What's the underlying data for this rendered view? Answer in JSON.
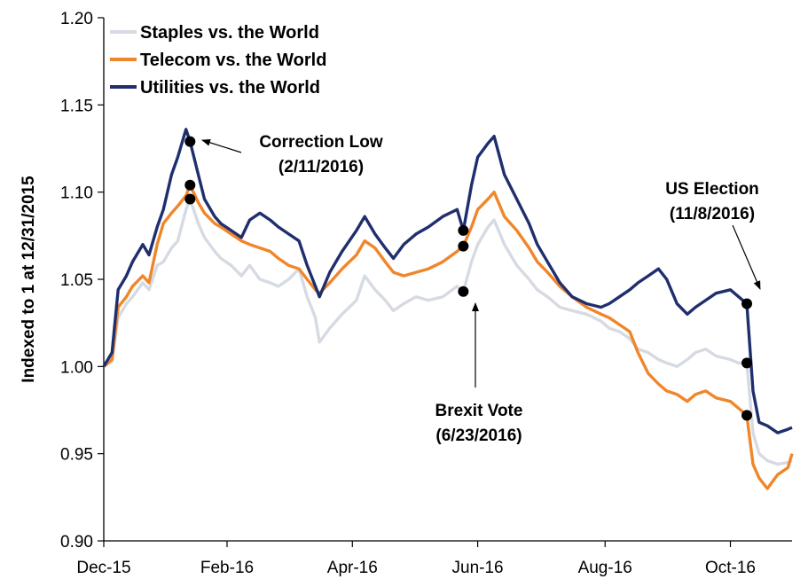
{
  "chart_data": {
    "type": "line",
    "ylabel": "Indexed to 1 at 12/31/2015",
    "xlabel": "",
    "ylim": [
      0.9,
      1.2
    ],
    "yticks": [
      "0.90",
      "0.95",
      "1.00",
      "1.05",
      "1.10",
      "1.15",
      "1.20"
    ],
    "xlim": [
      "2015-12-31",
      "2016-11-30"
    ],
    "xticks": [
      {
        "label": "Dec-15",
        "date": "2015-12-31"
      },
      {
        "label": "Feb-16",
        "date": "2016-02-29"
      },
      {
        "label": "Apr-16",
        "date": "2016-04-30"
      },
      {
        "label": "Jun-16",
        "date": "2016-06-30"
      },
      {
        "label": "Aug-16",
        "date": "2016-08-31"
      },
      {
        "label": "Oct-16",
        "date": "2016-10-31"
      }
    ],
    "grid": false,
    "legend_position": "top-left",
    "series": [
      {
        "name": "Staples vs. the World",
        "color": "#d6dae3",
        "points": [
          [
            "2015-12-31",
            1.0
          ],
          [
            "2016-01-04",
            1.003
          ],
          [
            "2016-01-07",
            1.028
          ],
          [
            "2016-01-11",
            1.036
          ],
          [
            "2016-01-14",
            1.04
          ],
          [
            "2016-01-19",
            1.048
          ],
          [
            "2016-01-22",
            1.044
          ],
          [
            "2016-01-26",
            1.058
          ],
          [
            "2016-01-29",
            1.06
          ],
          [
            "2016-02-02",
            1.068
          ],
          [
            "2016-02-05",
            1.072
          ],
          [
            "2016-02-09",
            1.09
          ],
          [
            "2016-02-11",
            1.096
          ],
          [
            "2016-02-15",
            1.082
          ],
          [
            "2016-02-18",
            1.074
          ],
          [
            "2016-02-23",
            1.066
          ],
          [
            "2016-02-26",
            1.062
          ],
          [
            "2016-03-02",
            1.058
          ],
          [
            "2016-03-07",
            1.052
          ],
          [
            "2016-03-11",
            1.058
          ],
          [
            "2016-03-16",
            1.05
          ],
          [
            "2016-03-21",
            1.048
          ],
          [
            "2016-03-25",
            1.046
          ],
          [
            "2016-03-30",
            1.05
          ],
          [
            "2016-04-04",
            1.056
          ],
          [
            "2016-04-08",
            1.04
          ],
          [
            "2016-04-12",
            1.028
          ],
          [
            "2016-04-14",
            1.014
          ],
          [
            "2016-04-19",
            1.022
          ],
          [
            "2016-04-25",
            1.03
          ],
          [
            "2016-05-02",
            1.038
          ],
          [
            "2016-05-06",
            1.052
          ],
          [
            "2016-05-11",
            1.044
          ],
          [
            "2016-05-16",
            1.038
          ],
          [
            "2016-05-20",
            1.032
          ],
          [
            "2016-05-25",
            1.036
          ],
          [
            "2016-05-31",
            1.04
          ],
          [
            "2016-06-06",
            1.038
          ],
          [
            "2016-06-13",
            1.04
          ],
          [
            "2016-06-20",
            1.046
          ],
          [
            "2016-06-23",
            1.043
          ],
          [
            "2016-06-27",
            1.06
          ],
          [
            "2016-06-30",
            1.07
          ],
          [
            "2016-07-05",
            1.08
          ],
          [
            "2016-07-08",
            1.084
          ],
          [
            "2016-07-13",
            1.07
          ],
          [
            "2016-07-19",
            1.058
          ],
          [
            "2016-07-25",
            1.05
          ],
          [
            "2016-07-29",
            1.044
          ],
          [
            "2016-08-03",
            1.04
          ],
          [
            "2016-08-09",
            1.034
          ],
          [
            "2016-08-15",
            1.032
          ],
          [
            "2016-08-22",
            1.03
          ],
          [
            "2016-08-29",
            1.026
          ],
          [
            "2016-09-02",
            1.022
          ],
          [
            "2016-09-07",
            1.02
          ],
          [
            "2016-09-12",
            1.016
          ],
          [
            "2016-09-16",
            1.01
          ],
          [
            "2016-09-21",
            1.008
          ],
          [
            "2016-09-26",
            1.004
          ],
          [
            "2016-09-30",
            1.002
          ],
          [
            "2016-10-05",
            1.0
          ],
          [
            "2016-10-10",
            1.004
          ],
          [
            "2016-10-14",
            1.008
          ],
          [
            "2016-10-19",
            1.01
          ],
          [
            "2016-10-24",
            1.006
          ],
          [
            "2016-10-31",
            1.004
          ],
          [
            "2016-11-04",
            1.002
          ],
          [
            "2016-11-08",
            1.002
          ],
          [
            "2016-11-11",
            0.962
          ],
          [
            "2016-11-14",
            0.95
          ],
          [
            "2016-11-18",
            0.946
          ],
          [
            "2016-11-23",
            0.944
          ],
          [
            "2016-11-28",
            0.945
          ],
          [
            "2016-11-30",
            0.946
          ]
        ]
      },
      {
        "name": "Telecom vs. the World",
        "color": "#f0862a",
        "points": [
          [
            "2015-12-31",
            1.0
          ],
          [
            "2016-01-04",
            1.004
          ],
          [
            "2016-01-07",
            1.034
          ],
          [
            "2016-01-11",
            1.04
          ],
          [
            "2016-01-14",
            1.046
          ],
          [
            "2016-01-19",
            1.052
          ],
          [
            "2016-01-22",
            1.048
          ],
          [
            "2016-01-26",
            1.07
          ],
          [
            "2016-01-29",
            1.082
          ],
          [
            "2016-02-02",
            1.088
          ],
          [
            "2016-02-05",
            1.092
          ],
          [
            "2016-02-09",
            1.098
          ],
          [
            "2016-02-11",
            1.104
          ],
          [
            "2016-02-15",
            1.094
          ],
          [
            "2016-02-18",
            1.088
          ],
          [
            "2016-02-23",
            1.082
          ],
          [
            "2016-02-26",
            1.08
          ],
          [
            "2016-03-02",
            1.076
          ],
          [
            "2016-03-07",
            1.072
          ],
          [
            "2016-03-11",
            1.07
          ],
          [
            "2016-03-16",
            1.068
          ],
          [
            "2016-03-21",
            1.066
          ],
          [
            "2016-03-25",
            1.062
          ],
          [
            "2016-03-30",
            1.058
          ],
          [
            "2016-04-04",
            1.056
          ],
          [
            "2016-04-08",
            1.05
          ],
          [
            "2016-04-12",
            1.044
          ],
          [
            "2016-04-14",
            1.042
          ],
          [
            "2016-04-19",
            1.048
          ],
          [
            "2016-04-25",
            1.056
          ],
          [
            "2016-05-02",
            1.064
          ],
          [
            "2016-05-06",
            1.072
          ],
          [
            "2016-05-11",
            1.068
          ],
          [
            "2016-05-16",
            1.06
          ],
          [
            "2016-05-20",
            1.054
          ],
          [
            "2016-05-25",
            1.052
          ],
          [
            "2016-05-31",
            1.054
          ],
          [
            "2016-06-06",
            1.056
          ],
          [
            "2016-06-13",
            1.06
          ],
          [
            "2016-06-20",
            1.066
          ],
          [
            "2016-06-23",
            1.069
          ],
          [
            "2016-06-27",
            1.08
          ],
          [
            "2016-06-30",
            1.09
          ],
          [
            "2016-07-05",
            1.096
          ],
          [
            "2016-07-08",
            1.1
          ],
          [
            "2016-07-13",
            1.086
          ],
          [
            "2016-07-19",
            1.078
          ],
          [
            "2016-07-25",
            1.068
          ],
          [
            "2016-07-29",
            1.06
          ],
          [
            "2016-08-03",
            1.054
          ],
          [
            "2016-08-09",
            1.046
          ],
          [
            "2016-08-15",
            1.04
          ],
          [
            "2016-08-22",
            1.034
          ],
          [
            "2016-08-29",
            1.03
          ],
          [
            "2016-09-02",
            1.028
          ],
          [
            "2016-09-07",
            1.024
          ],
          [
            "2016-09-12",
            1.02
          ],
          [
            "2016-09-16",
            1.008
          ],
          [
            "2016-09-21",
            0.996
          ],
          [
            "2016-09-26",
            0.99
          ],
          [
            "2016-09-30",
            0.986
          ],
          [
            "2016-10-05",
            0.984
          ],
          [
            "2016-10-10",
            0.98
          ],
          [
            "2016-10-14",
            0.984
          ],
          [
            "2016-10-19",
            0.986
          ],
          [
            "2016-10-24",
            0.982
          ],
          [
            "2016-10-31",
            0.98
          ],
          [
            "2016-11-04",
            0.976
          ],
          [
            "2016-11-08",
            0.972
          ],
          [
            "2016-11-11",
            0.944
          ],
          [
            "2016-11-14",
            0.936
          ],
          [
            "2016-11-18",
            0.93
          ],
          [
            "2016-11-23",
            0.938
          ],
          [
            "2016-11-28",
            0.942
          ],
          [
            "2016-11-30",
            0.95
          ]
        ]
      },
      {
        "name": "Utilities vs. the World",
        "color": "#1f2f6e",
        "points": [
          [
            "2015-12-31",
            1.0
          ],
          [
            "2016-01-04",
            1.008
          ],
          [
            "2016-01-07",
            1.044
          ],
          [
            "2016-01-11",
            1.052
          ],
          [
            "2016-01-14",
            1.06
          ],
          [
            "2016-01-19",
            1.07
          ],
          [
            "2016-01-22",
            1.064
          ],
          [
            "2016-01-26",
            1.08
          ],
          [
            "2016-01-29",
            1.09
          ],
          [
            "2016-02-02",
            1.11
          ],
          [
            "2016-02-05",
            1.12
          ],
          [
            "2016-02-09",
            1.136
          ],
          [
            "2016-02-11",
            1.129
          ],
          [
            "2016-02-15",
            1.11
          ],
          [
            "2016-02-18",
            1.096
          ],
          [
            "2016-02-23",
            1.086
          ],
          [
            "2016-02-26",
            1.082
          ],
          [
            "2016-03-02",
            1.078
          ],
          [
            "2016-03-07",
            1.074
          ],
          [
            "2016-03-11",
            1.084
          ],
          [
            "2016-03-16",
            1.088
          ],
          [
            "2016-03-21",
            1.084
          ],
          [
            "2016-03-25",
            1.08
          ],
          [
            "2016-03-30",
            1.076
          ],
          [
            "2016-04-04",
            1.072
          ],
          [
            "2016-04-08",
            1.058
          ],
          [
            "2016-04-12",
            1.046
          ],
          [
            "2016-04-14",
            1.04
          ],
          [
            "2016-04-19",
            1.054
          ],
          [
            "2016-04-25",
            1.066
          ],
          [
            "2016-05-02",
            1.078
          ],
          [
            "2016-05-06",
            1.086
          ],
          [
            "2016-05-11",
            1.076
          ],
          [
            "2016-05-16",
            1.068
          ],
          [
            "2016-05-20",
            1.062
          ],
          [
            "2016-05-25",
            1.07
          ],
          [
            "2016-05-31",
            1.076
          ],
          [
            "2016-06-06",
            1.08
          ],
          [
            "2016-06-13",
            1.086
          ],
          [
            "2016-06-20",
            1.09
          ],
          [
            "2016-06-23",
            1.078
          ],
          [
            "2016-06-27",
            1.104
          ],
          [
            "2016-06-30",
            1.12
          ],
          [
            "2016-07-05",
            1.128
          ],
          [
            "2016-07-08",
            1.132
          ],
          [
            "2016-07-13",
            1.11
          ],
          [
            "2016-07-19",
            1.096
          ],
          [
            "2016-07-25",
            1.082
          ],
          [
            "2016-07-29",
            1.07
          ],
          [
            "2016-08-03",
            1.06
          ],
          [
            "2016-08-09",
            1.048
          ],
          [
            "2016-08-15",
            1.04
          ],
          [
            "2016-08-22",
            1.036
          ],
          [
            "2016-08-29",
            1.034
          ],
          [
            "2016-09-02",
            1.036
          ],
          [
            "2016-09-07",
            1.04
          ],
          [
            "2016-09-12",
            1.044
          ],
          [
            "2016-09-16",
            1.048
          ],
          [
            "2016-09-21",
            1.052
          ],
          [
            "2016-09-26",
            1.056
          ],
          [
            "2016-09-30",
            1.05
          ],
          [
            "2016-10-05",
            1.036
          ],
          [
            "2016-10-10",
            1.03
          ],
          [
            "2016-10-14",
            1.034
          ],
          [
            "2016-10-19",
            1.038
          ],
          [
            "2016-10-24",
            1.042
          ],
          [
            "2016-10-31",
            1.044
          ],
          [
            "2016-11-04",
            1.04
          ],
          [
            "2016-11-08",
            1.036
          ],
          [
            "2016-11-11",
            0.986
          ],
          [
            "2016-11-14",
            0.968
          ],
          [
            "2016-11-18",
            0.966
          ],
          [
            "2016-11-23",
            0.962
          ],
          [
            "2016-11-28",
            0.964
          ],
          [
            "2016-11-30",
            0.965
          ]
        ]
      }
    ],
    "markers": [
      {
        "date": "2016-02-11",
        "y": 1.129
      },
      {
        "date": "2016-02-11",
        "y": 1.104
      },
      {
        "date": "2016-02-11",
        "y": 1.096
      },
      {
        "date": "2016-06-23",
        "y": 1.078
      },
      {
        "date": "2016-06-23",
        "y": 1.069
      },
      {
        "date": "2016-06-23",
        "y": 1.043
      },
      {
        "date": "2016-11-08",
        "y": 1.036
      },
      {
        "date": "2016-11-08",
        "y": 1.002
      },
      {
        "date": "2016-11-08",
        "y": 0.972
      }
    ],
    "annotations": [
      {
        "lines": [
          "Correction Low",
          "(2/11/2016)"
        ],
        "point_date": "2016-02-11",
        "point_y": 1.129
      },
      {
        "lines": [
          "Brexit Vote",
          "(6/23/2016)"
        ],
        "point_date": "2016-06-23",
        "point_y": 1.043
      },
      {
        "lines": [
          "US Election",
          "(11/8/2016)"
        ],
        "point_date": "2016-11-08",
        "point_y": 1.036
      }
    ]
  }
}
